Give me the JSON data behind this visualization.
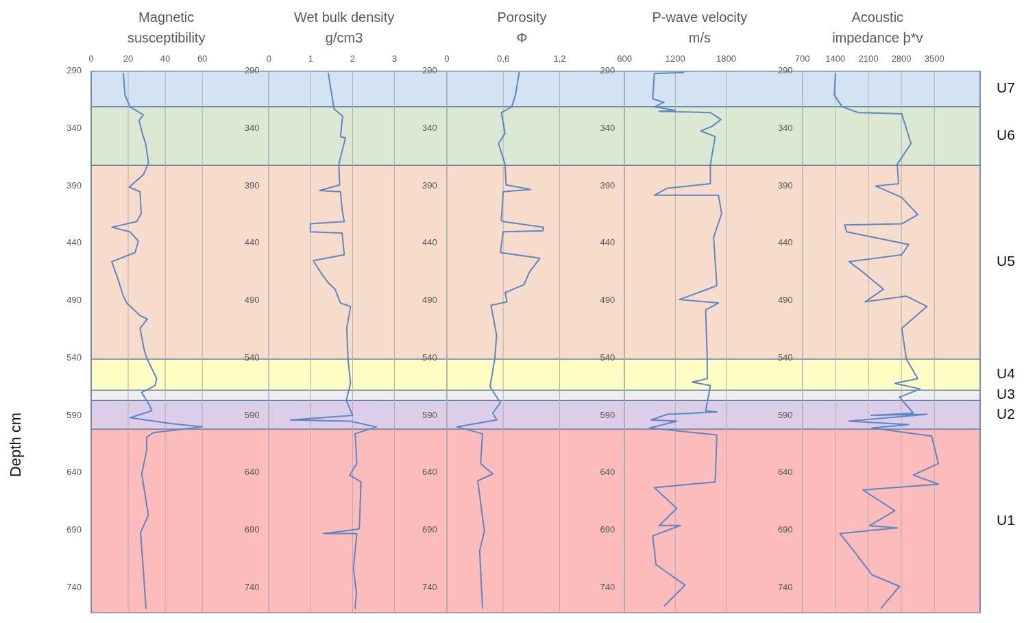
{
  "chart_data": [
    {
      "type": "line",
      "title": "Magnetic\nsusceptibility",
      "ylabel": "Depth cm",
      "xlim": [
        0,
        96
      ],
      "xticks": [
        0,
        20,
        40,
        60
      ],
      "ylim": [
        762,
        290
      ],
      "yticks": [
        290,
        340,
        390,
        440,
        490,
        540,
        590,
        640,
        690,
        740
      ],
      "grid": "x",
      "bands": [
        {
          "axis": "y",
          "from": 290,
          "to": 321,
          "color": "#d4e3f3"
        },
        {
          "axis": "y",
          "from": 321,
          "to": 372,
          "color": "#dbe8d2"
        },
        {
          "axis": "y",
          "from": 372,
          "to": 541,
          "color": "#f8dccb"
        },
        {
          "axis": "y",
          "from": 541,
          "to": 568,
          "color": "#fefdc3"
        },
        {
          "axis": "y",
          "from": 568,
          "to": 577,
          "color": "#eeeeee"
        },
        {
          "axis": "y",
          "from": 577,
          "to": 602,
          "color": "#dccde8"
        },
        {
          "axis": "y",
          "from": 602,
          "to": 762,
          "color": "#fcbcbc"
        }
      ],
      "series": [
        {
          "color": "#5a87c5",
          "x": [
            17.4,
            18.3,
            21,
            28.2,
            25.9,
            27.6,
            29.4,
            31,
            28.2,
            20.6,
            26.4,
            27,
            24.6,
            11.1,
            21,
            25.5,
            23.7,
            11.1,
            13.8,
            17.4,
            19.2,
            26.4,
            30.3,
            26.4,
            28.5,
            30,
            35.4,
            34.5,
            27.3,
            31.8,
            32.7,
            21,
            42.5,
            60,
            33.6,
            30,
            30,
            27.3,
            30.9,
            26.7,
            28.2,
            29.6
          ],
          "values": [
            292,
            311,
            321,
            328,
            333,
            344,
            353,
            370,
            380,
            391,
            395,
            414,
            421,
            426,
            430,
            438,
            448,
            456,
            468,
            486,
            492,
            503,
            506,
            514,
            532,
            540,
            558,
            564,
            570,
            582,
            586,
            592,
            597,
            600,
            605,
            609,
            620,
            641,
            677,
            692,
            726,
            758
          ]
        }
      ]
    },
    {
      "type": "line",
      "title": "Wet bulk density\ng/cm3",
      "xlim": [
        0,
        4.25
      ],
      "xticks": [
        0,
        1,
        2,
        3
      ],
      "ylim": [
        762,
        290
      ],
      "yticks": [
        290,
        340,
        390,
        440,
        490,
        540,
        590,
        640,
        690,
        740
      ],
      "grid": "x",
      "bands": [
        {
          "axis": "y",
          "from": 290,
          "to": 321,
          "color": "#d4e3f3"
        },
        {
          "axis": "y",
          "from": 321,
          "to": 372,
          "color": "#dbe8d2"
        },
        {
          "axis": "y",
          "from": 372,
          "to": 541,
          "color": "#f8dccb"
        },
        {
          "axis": "y",
          "from": 541,
          "to": 568,
          "color": "#fefdc3"
        },
        {
          "axis": "y",
          "from": 568,
          "to": 577,
          "color": "#eeeeee"
        },
        {
          "axis": "y",
          "from": 577,
          "to": 602,
          "color": "#dccde8"
        },
        {
          "axis": "y",
          "from": 602,
          "to": 762,
          "color": "#fcbcbc"
        }
      ],
      "series": [
        {
          "color": "#5a87c5",
          "x": [
            1.42,
            1.49,
            1.56,
            1.76,
            1.71,
            1.83,
            1.67,
            1.69,
            1.21,
            1.71,
            1.75,
            1.8,
            0.99,
            0.99,
            1.75,
            1.8,
            1.06,
            1.23,
            1.41,
            1.58,
            1.71,
            1.95,
            1.86,
            1.89,
            1.95,
            1.85,
            2.0,
            0.52,
            1.93,
            2.57,
            2.06,
            2.1,
            1.93,
            2.2,
            2.16,
            1.3,
            2.1,
            2.02,
            2.09,
            2.06
          ],
          "values": [
            292,
            308,
            323,
            329,
            347,
            348,
            371,
            389,
            394,
            395,
            411,
            421,
            423,
            430,
            431,
            450,
            455,
            465,
            474,
            480,
            492,
            495,
            514,
            541,
            562,
            577,
            590,
            594,
            595,
            600,
            606,
            632,
            642,
            648,
            689,
            693,
            693,
            723,
            745,
            758
          ]
        }
      ]
    },
    {
      "type": "line",
      "title": "Porosity\nΦ",
      "xlim": [
        0,
        1.89
      ],
      "xticks": [
        {
          "value": 0,
          "label": "0"
        },
        {
          "value": 0.6,
          "label": "0,6"
        },
        {
          "value": 1.2,
          "label": "1,2"
        }
      ],
      "ylim": [
        762,
        290
      ],
      "yticks": [
        290,
        340,
        390,
        440,
        490,
        540,
        590,
        640,
        690,
        740
      ],
      "grid": "x",
      "bands": [
        {
          "axis": "y",
          "from": 290,
          "to": 321,
          "color": "#d4e3f3"
        },
        {
          "axis": "y",
          "from": 321,
          "to": 372,
          "color": "#dbe8d2"
        },
        {
          "axis": "y",
          "from": 372,
          "to": 541,
          "color": "#f8dccb"
        },
        {
          "axis": "y",
          "from": 541,
          "to": 568,
          "color": "#fefdc3"
        },
        {
          "axis": "y",
          "from": 568,
          "to": 577,
          "color": "#eeeeee"
        },
        {
          "axis": "y",
          "from": 577,
          "to": 602,
          "color": "#dccde8"
        },
        {
          "axis": "y",
          "from": 602,
          "to": 762,
          "color": "#fcbcbc"
        }
      ],
      "series": [
        {
          "color": "#5a87c5",
          "x": [
            0.77,
            0.73,
            0.69,
            0.58,
            0.62,
            0.55,
            0.62,
            0.63,
            0.89,
            0.6,
            0.58,
            0.6,
            1.03,
            1.02,
            0.6,
            0.57,
            0.99,
            0.88,
            0.82,
            0.62,
            0.64,
            0.47,
            0.53,
            0.51,
            0.46,
            0.57,
            0.49,
            0.53,
            0.11,
            0.38,
            0.36,
            0.49,
            0.33,
            0.4,
            0.35,
            0.38
          ],
          "values": [
            291,
            311,
            321,
            326,
            344,
            353,
            371,
            389,
            393,
            395,
            420,
            421,
            426,
            429,
            430,
            448,
            453,
            465,
            476,
            483,
            491,
            494,
            520,
            541,
            565,
            579,
            588,
            594,
            600,
            606,
            632,
            641,
            647,
            691,
            708,
            758
          ]
        }
      ]
    },
    {
      "type": "line",
      "title": "P-wave velocity\nm/s",
      "xlim": [
        600,
        2700
      ],
      "xticks": [
        600,
        1200,
        1800
      ],
      "ylim": [
        762,
        290
      ],
      "yticks": [
        290,
        340,
        390,
        440,
        490,
        540,
        590,
        640,
        690,
        740
      ],
      "grid": "x",
      "bands": [
        {
          "axis": "y",
          "from": 290,
          "to": 321,
          "color": "#d4e3f3"
        },
        {
          "axis": "y",
          "from": 321,
          "to": 372,
          "color": "#dbe8d2"
        },
        {
          "axis": "y",
          "from": 372,
          "to": 541,
          "color": "#f8dccb"
        },
        {
          "axis": "y",
          "from": 541,
          "to": 568,
          "color": "#fefdc3"
        },
        {
          "axis": "y",
          "from": 568,
          "to": 577,
          "color": "#eeeeee"
        },
        {
          "axis": "y",
          "from": 577,
          "to": 602,
          "color": "#dccde8"
        },
        {
          "axis": "y",
          "from": 602,
          "to": 762,
          "color": "#fcbcbc"
        }
      ],
      "series": [
        {
          "color": "#5a87c5",
          "x": [
            1300,
            952,
            933,
            1066,
            952,
            1198,
            1009,
            1614,
            1739,
            1633,
            1501,
            1671,
            1614,
            1614,
            1103,
            952,
            1709,
            1747,
            1652,
            1690,
            1247,
            1709,
            1558,
            1577,
            1577,
            1399,
            1614,
            1558,
            1690,
            1103,
            914,
            1217,
            895,
            1690,
            1671,
            952,
            1217,
            1009,
            1259,
            933,
            971,
            1316,
            1070
          ],
          "values": [
            291,
            292,
            314,
            317,
            321,
            324,
            325,
            326,
            332,
            338,
            342,
            347,
            371,
            388,
            392,
            398,
            398,
            414,
            435,
            477,
            489,
            492,
            498,
            541,
            558,
            561,
            564,
            586,
            587,
            589,
            594,
            595,
            601,
            607,
            648,
            653,
            671,
            686,
            686,
            695,
            720,
            738,
            756
          ]
        }
      ]
    },
    {
      "type": "line",
      "title": "Acoustic\nimpedance þ*v",
      "xlim": [
        700,
        4470
      ],
      "xticks": [
        700,
        1400,
        2100,
        2800,
        3500
      ],
      "ylim": [
        762,
        290
      ],
      "yticks": [
        290,
        340,
        390,
        440,
        490,
        540,
        590,
        640,
        690,
        740
      ],
      "grid": "x",
      "bands": [
        {
          "axis": "y",
          "from": 290,
          "to": 321,
          "color": "#d4e3f3",
          "label": "U7"
        },
        {
          "axis": "y",
          "from": 321,
          "to": 372,
          "color": "#dbe8d2",
          "label": "U6"
        },
        {
          "axis": "y",
          "from": 372,
          "to": 541,
          "color": "#f8dccb",
          "label": "U5"
        },
        {
          "axis": "y",
          "from": 541,
          "to": 568,
          "color": "#fefdc3",
          "label": "U4"
        },
        {
          "axis": "y",
          "from": 568,
          "to": 577,
          "color": "#eeeeee",
          "label": "U3"
        },
        {
          "axis": "y",
          "from": 577,
          "to": 602,
          "color": "#dccde8",
          "label": "U2"
        },
        {
          "axis": "y",
          "from": 602,
          "to": 762,
          "color": "#fcbcbc",
          "label": "U1"
        }
      ],
      "series": [
        {
          "color": "#5a87c5",
          "x": [
            1400,
            1380,
            1546,
            1886,
            2809,
            3004,
            2712,
            2741,
            2255,
            2809,
            3149,
            2809,
            1594,
            1643,
            2955,
            2809,
            1691,
            1983,
            2420,
            2031,
            2906,
            3343,
            2809,
            2906,
            3149,
            2663,
            3197,
            2760,
            3052,
            2158,
            3343,
            1691,
            2955,
            2177,
            3441,
            3587,
            3052,
            3587,
            1983,
            2663,
            2129,
            2712,
            1497,
            1789,
            2177,
            2760,
            2371
          ],
          "values": [
            292,
            311,
            321,
            326,
            327,
            353,
            371,
            388,
            390,
            400,
            415,
            423,
            424,
            430,
            441,
            450,
            456,
            465,
            480,
            491,
            486,
            495,
            514,
            541,
            558,
            562,
            567,
            574,
            588,
            590,
            589,
            595,
            598,
            601,
            608,
            632,
            642,
            650,
            655,
            673,
            686,
            688,
            693,
            708,
            729,
            739,
            758
          ]
        }
      ]
    }
  ]
}
